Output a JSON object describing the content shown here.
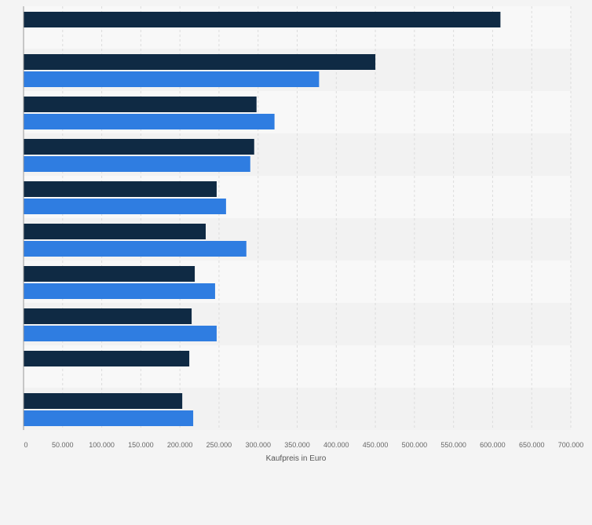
{
  "chart_data": {
    "type": "bar",
    "orientation": "horizontal",
    "categories": [
      "",
      "",
      "",
      "",
      "",
      "",
      "",
      "",
      "",
      ""
    ],
    "series": [
      {
        "color": "#0f2a44",
        "values": [
          610000,
          450000,
          298000,
          295000,
          247000,
          233000,
          219000,
          215000,
          212000,
          203000
        ]
      },
      {
        "color": "#2f7de1",
        "values": [
          null,
          378000,
          321000,
          290000,
          259000,
          285000,
          245000,
          247000,
          null,
          217000
        ]
      }
    ],
    "xlabel": "Kaufpreis in Euro",
    "xlim": [
      0,
      700000
    ],
    "xticks": [
      0,
      50000,
      100000,
      150000,
      200000,
      250000,
      300000,
      350000,
      400000,
      450000,
      500000,
      550000,
      600000,
      650000,
      700000
    ],
    "xtick_labels": [
      "0",
      "50.000",
      "100.000",
      "150.000",
      "200.000",
      "250.000",
      "300.000",
      "350.000",
      "400.000",
      "450.000",
      "500.000",
      "550.000",
      "600.000",
      "650.000",
      "700.000"
    ],
    "grid": true,
    "legend": "none"
  }
}
